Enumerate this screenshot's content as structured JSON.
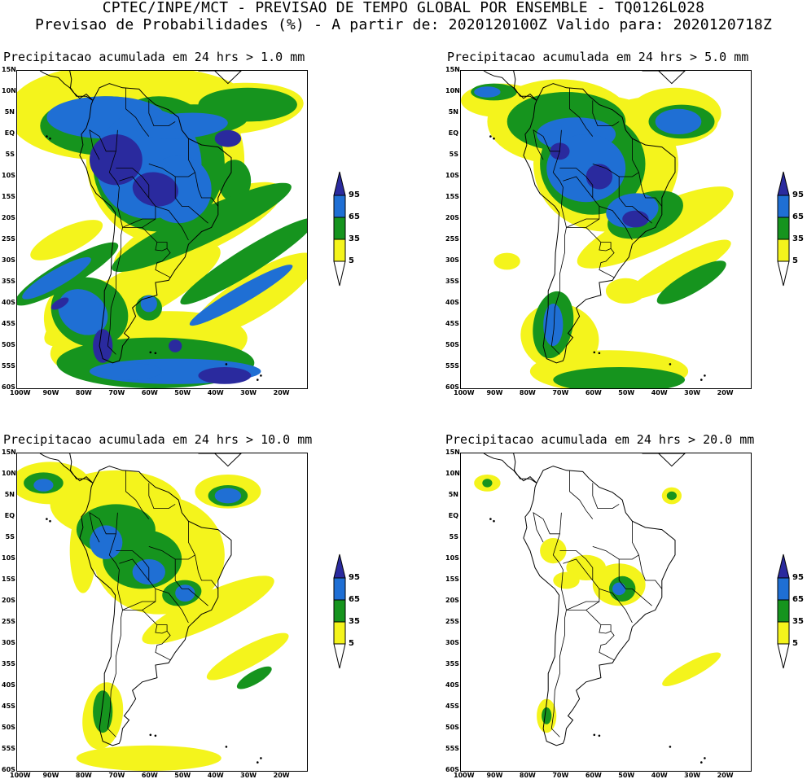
{
  "header": {
    "line1": "CPTEC/INPE/MCT - PREVISAO DE TEMPO GLOBAL POR ENSEMBLE - TQ0126L028",
    "line2": "Previsao de Probabilidades (%) -  A partir de: 2020120100Z  Valido para: 2020120718Z"
  },
  "lat_labels": [
    "15N",
    "10N",
    "5N",
    "EQ",
    "5S",
    "10S",
    "15S",
    "20S",
    "25S",
    "30S",
    "35S",
    "40S",
    "45S",
    "50S",
    "55S",
    "60S"
  ],
  "lon_labels": [
    "100W",
    "90W",
    "80W",
    "70W",
    "60W",
    "50W",
    "40W",
    "30W",
    "20W"
  ],
  "colorbar": {
    "levels": [
      "95",
      "65",
      "35",
      "5"
    ],
    "colors": {
      "c95": "#2a2a9e",
      "c65": "#1f6fd4",
      "c35": "#16941e",
      "c5": "#f4f41c",
      "outline": "#000000"
    }
  },
  "panels": [
    {
      "title": "Precipitacao acumulada em 24 hrs > 1.0 mm",
      "threshold_mm": 1.0
    },
    {
      "title": "Precipitacao acumulada em 24 hrs > 5.0 mm",
      "threshold_mm": 5.0
    },
    {
      "title": "Precipitacao acumulada em 24 hrs > 10.0 mm",
      "threshold_mm": 10.0
    },
    {
      "title": "Precipitacao acumulada em 24 hrs > 20.0 mm",
      "threshold_mm": 20.0
    }
  ]
}
